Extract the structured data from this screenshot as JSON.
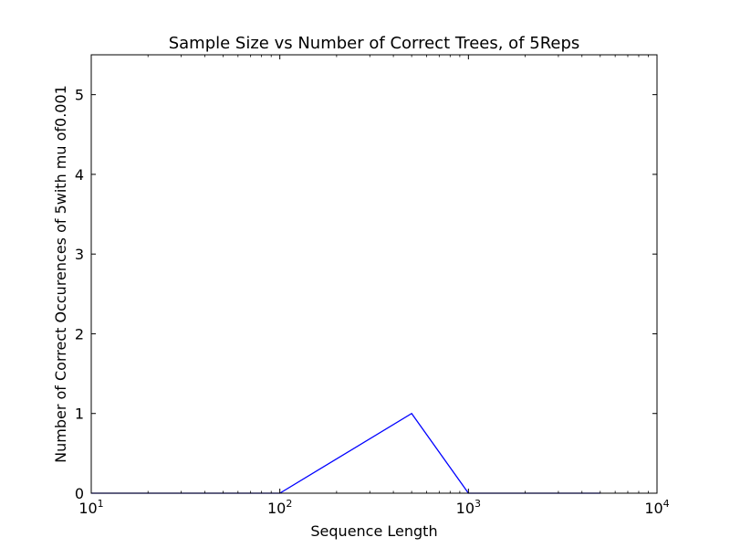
{
  "chart_data": {
    "type": "line",
    "title": "Sample Size vs Number of Correct Trees, of 5Reps",
    "xlabel": "Sequence Length",
    "ylabel": "Number of Correct Occurences of 5with mu of0.001",
    "xscale": "log",
    "xlim": [
      10,
      10000
    ],
    "ylim": [
      0,
      5.5
    ],
    "grid": false,
    "x_ticks": [
      {
        "base": "10",
        "exp": "1",
        "value": 10
      },
      {
        "base": "10",
        "exp": "2",
        "value": 100
      },
      {
        "base": "10",
        "exp": "3",
        "value": 1000
      },
      {
        "base": "10",
        "exp": "4",
        "value": 10000
      }
    ],
    "y_ticks": [
      {
        "label": "0",
        "value": 0
      },
      {
        "label": "1",
        "value": 1
      },
      {
        "label": "2",
        "value": 2
      },
      {
        "label": "3",
        "value": 3
      },
      {
        "label": "4",
        "value": 4
      },
      {
        "label": "5",
        "value": 5
      }
    ],
    "series": [
      {
        "color": "#0000ff",
        "x": [
          10,
          50,
          100,
          500,
          1000,
          5000
        ],
        "y": [
          0,
          0,
          0,
          1,
          0,
          0
        ]
      }
    ]
  }
}
